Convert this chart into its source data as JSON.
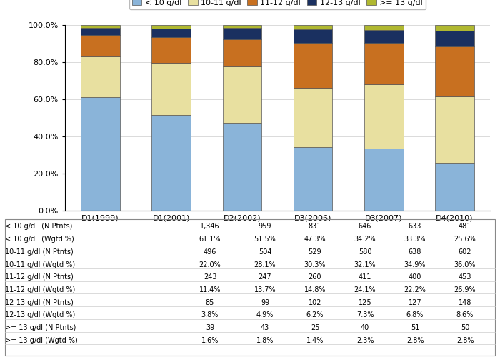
{
  "categories": [
    "D1(1999)",
    "D1(2001)",
    "D2(2002)",
    "D3(2006)",
    "D3(2007)",
    "D4(2010)"
  ],
  "series": [
    {
      "label": "< 10 g/dl",
      "color": "#8ab4d9",
      "values": [
        61.1,
        51.5,
        47.3,
        34.2,
        33.3,
        25.6
      ]
    },
    {
      "label": "10-11 g/dl",
      "color": "#e8e0a0",
      "values": [
        22.0,
        28.1,
        30.3,
        32.1,
        34.9,
        36.0
      ]
    },
    {
      "label": "11-12 g/dl",
      "color": "#c87020",
      "values": [
        11.4,
        13.7,
        14.8,
        24.1,
        22.2,
        26.9
      ]
    },
    {
      "label": "12-13 g/dl",
      "color": "#1a3060",
      "values": [
        3.8,
        4.9,
        6.2,
        7.3,
        6.8,
        8.6
      ]
    },
    {
      "label": ">= 13 g/dl",
      "color": "#b0b830",
      "values": [
        1.6,
        1.8,
        1.4,
        2.3,
        2.8,
        2.8
      ]
    }
  ],
  "table_rows": [
    {
      "label": "< 10 g/dl  (N Ptnts)",
      "values": [
        "1,346",
        "959",
        "831",
        "646",
        "633",
        "481"
      ]
    },
    {
      "label": "< 10 g/dl  (Wgtd %)",
      "values": [
        "61.1%",
        "51.5%",
        "47.3%",
        "34.2%",
        "33.3%",
        "25.6%"
      ]
    },
    {
      "label": "10-11 g/dl (N Ptnts)",
      "values": [
        "496",
        "504",
        "529",
        "580",
        "638",
        "602"
      ]
    },
    {
      "label": "10-11 g/dl (Wgtd %)",
      "values": [
        "22.0%",
        "28.1%",
        "30.3%",
        "32.1%",
        "34.9%",
        "36.0%"
      ]
    },
    {
      "label": "11-12 g/dl (N Ptnts)",
      "values": [
        "243",
        "247",
        "260",
        "411",
        "400",
        "453"
      ]
    },
    {
      "label": "11-12 g/dl (Wgtd %)",
      "values": [
        "11.4%",
        "13.7%",
        "14.8%",
        "24.1%",
        "22.2%",
        "26.9%"
      ]
    },
    {
      "label": "12-13 g/dl (N Ptnts)",
      "values": [
        "85",
        "99",
        "102",
        "125",
        "127",
        "148"
      ]
    },
    {
      "label": "12-13 g/dl (Wgtd %)",
      "values": [
        "3.8%",
        "4.9%",
        "6.2%",
        "7.3%",
        "6.8%",
        "8.6%"
      ]
    },
    {
      "label": ">= 13 g/dl (N Ptnts)",
      "values": [
        "39",
        "43",
        "25",
        "40",
        "51",
        "50"
      ]
    },
    {
      "label": ">= 13 g/dl (Wgtd %)",
      "values": [
        "1.6%",
        "1.8%",
        "1.4%",
        "2.3%",
        "2.8%",
        "2.8%"
      ]
    }
  ],
  "ylim": [
    0,
    100
  ],
  "yticks": [
    0,
    20,
    40,
    60,
    80,
    100
  ],
  "ytick_labels": [
    "0.0%",
    "20.0%",
    "40.0%",
    "60.0%",
    "80.0%",
    "100.0%"
  ],
  "background_color": "#ffffff",
  "bar_width": 0.55,
  "table_font_size": 7.0,
  "axis_font_size": 8.0,
  "legend_font_size": 8.0
}
